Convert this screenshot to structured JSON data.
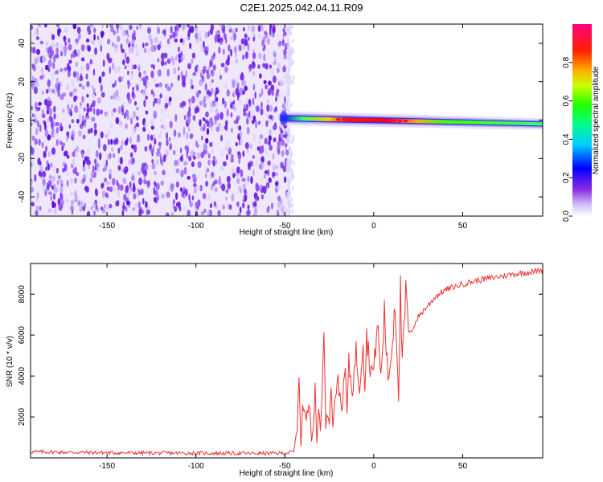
{
  "title": "C2E1.2025.042.04.11.R09",
  "chart_data": [
    {
      "type": "heatmap",
      "title": "C2E1.2025.042.04.11.R09",
      "xlabel": "Height of straight line (km)",
      "ylabel": "Frequency (Hz)",
      "xlim": [
        -193,
        95
      ],
      "ylim": [
        -50,
        50
      ],
      "x_ticks": [
        -150,
        -100,
        -50,
        0,
        50
      ],
      "y_ticks": [
        -40,
        -20,
        0,
        20,
        40
      ],
      "colorbar": {
        "label": "Normalized spectral amplitude",
        "range": [
          0,
          1
        ],
        "ticks": [
          0.0,
          0.2,
          0.4,
          0.6,
          0.8
        ],
        "tick_labels": [
          "0.0",
          "0.2",
          "0.4",
          "0.6",
          "0.8"
        ],
        "colormap": "rainbow (white-violet-blue-cyan-green-yellow-red-magenta)"
      },
      "noise_region_x": [
        -193,
        -47
      ],
      "signal_line": {
        "x_start": -52,
        "x_end": 95,
        "frequency_start": 1,
        "frequency_end": -2,
        "peak_region_x": [
          -20,
          20
        ]
      }
    },
    {
      "type": "line",
      "title": "",
      "xlabel": "Height of straight line (km)",
      "ylabel": "SNR (10 * v/v)",
      "xlim": [
        -193,
        95
      ],
      "ylim": [
        0,
        9500
      ],
      "x_ticks": [
        -150,
        -100,
        -50,
        0,
        50
      ],
      "y_ticks": [
        2000,
        4000,
        6000,
        8000
      ],
      "series": [
        {
          "name": "SNR",
          "color": "#ee3333",
          "x": [
            -193,
            -150,
            -100,
            -60,
            -50,
            -45,
            -43,
            -42,
            -41,
            -40,
            -38,
            -36,
            -35,
            -34,
            -33,
            -32,
            -31,
            -30,
            -28,
            -27,
            -26,
            -25,
            -24,
            -23,
            -22,
            -20,
            -18,
            -16,
            -15,
            -14,
            -12,
            -10,
            -8,
            -6,
            -5,
            -4,
            -2,
            0,
            2,
            4,
            6,
            8,
            10,
            12,
            14,
            15,
            16,
            18,
            20,
            25,
            30,
            35,
            40,
            50,
            60,
            70,
            80,
            90,
            95
          ],
          "y": [
            300,
            250,
            230,
            220,
            240,
            300,
            1500,
            4200,
            600,
            2500,
            1900,
            2800,
            900,
            1500,
            3300,
            700,
            2600,
            1300,
            5800,
            1600,
            2200,
            1800,
            3900,
            1400,
            3000,
            3700,
            2400,
            4300,
            2200,
            4600,
            3200,
            5200,
            3400,
            5900,
            3300,
            6000,
            4500,
            4200,
            6700,
            3900,
            7100,
            3800,
            5100,
            7800,
            3100,
            8100,
            4500,
            8000,
            6000,
            6900,
            7400,
            7900,
            8200,
            8500,
            8700,
            8850,
            9000,
            9100,
            9200
          ]
        }
      ]
    }
  ]
}
